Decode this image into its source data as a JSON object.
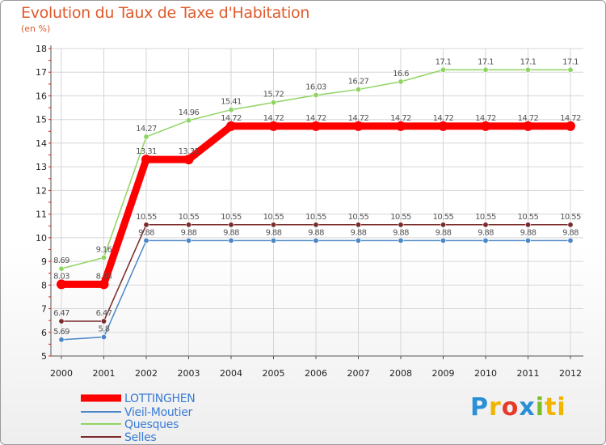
{
  "title": "Evolution du Taux de Taxe d'Habitation",
  "subtitle": "(en %)",
  "logo": [
    "P",
    "r",
    "o",
    "x",
    "i",
    "ti"
  ],
  "chart_data": {
    "type": "line",
    "title": "Evolution du Taux de Taxe d'Habitation",
    "ylabel": "(en %)",
    "xlabel": "",
    "ylim": [
      5,
      18
    ],
    "yticks": [
      "5",
      "6",
      "7",
      "8",
      "9",
      "10",
      "11",
      "12",
      "13",
      "14",
      "15",
      "16",
      "17",
      "18"
    ],
    "categories": [
      "2000",
      "2001",
      "2002",
      "2003",
      "2004",
      "2005",
      "2006",
      "2007",
      "2008",
      "2009",
      "2010",
      "2011",
      "2012"
    ],
    "legend_position": "bottom-left",
    "series": [
      {
        "name": "LOTTINGHEN",
        "color": "#ff0000",
        "values": [
          8.03,
          8.03,
          13.31,
          13.31,
          14.72,
          14.72,
          14.72,
          14.72,
          14.72,
          14.72,
          14.72,
          14.72,
          14.72
        ],
        "labels": [
          "8.03",
          "8.03",
          "13.31",
          "13.31",
          "14.72",
          "14.72",
          "14.72",
          "14.72",
          "14.72",
          "14.72",
          "14.72",
          "14.72",
          "14.72"
        ]
      },
      {
        "name": "Vieil-Moutier",
        "color": "#4a86c8",
        "values": [
          5.69,
          5.8,
          9.88,
          9.88,
          9.88,
          9.88,
          9.88,
          9.88,
          9.88,
          9.88,
          9.88,
          9.88,
          9.88
        ],
        "labels": [
          "5.69",
          "5.8",
          "9.88",
          "9.88",
          "9.88",
          "9.88",
          "9.88",
          "9.88",
          "9.88",
          "9.88",
          "9.88",
          "9.88",
          "9.88"
        ]
      },
      {
        "name": "Quesques",
        "color": "#8fd462",
        "values": [
          8.69,
          9.16,
          14.27,
          14.96,
          15.41,
          15.72,
          16.03,
          16.27,
          16.6,
          17.1,
          17.1,
          17.1,
          17.1
        ],
        "labels": [
          "8.69",
          "9.16",
          "14.27",
          "14.96",
          "15.41",
          "15.72",
          "16.03",
          "16.27",
          "16.6",
          "17.1",
          "17.1",
          "17.1",
          "17.1"
        ]
      },
      {
        "name": "Selles",
        "color": "#7a2a2a",
        "values": [
          6.47,
          6.47,
          10.55,
          10.55,
          10.55,
          10.55,
          10.55,
          10.55,
          10.55,
          10.55,
          10.55,
          10.55,
          10.55
        ],
        "labels": [
          "6.47",
          "6.47",
          "10.55",
          "10.55",
          "10.55",
          "10.55",
          "10.55",
          "10.55",
          "10.55",
          "10.55",
          "10.55",
          "10.55",
          "10.55"
        ]
      }
    ]
  }
}
